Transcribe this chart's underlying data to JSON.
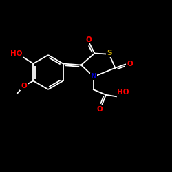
{
  "background": "#000000",
  "bond_color": "#ffffff",
  "atom_colors": {
    "O": "#ff0000",
    "N": "#0000cd",
    "S": "#ccaa00",
    "C": "#ffffff",
    "H": "#ffffff"
  },
  "lw": 1.3,
  "fontsize": 7.5
}
